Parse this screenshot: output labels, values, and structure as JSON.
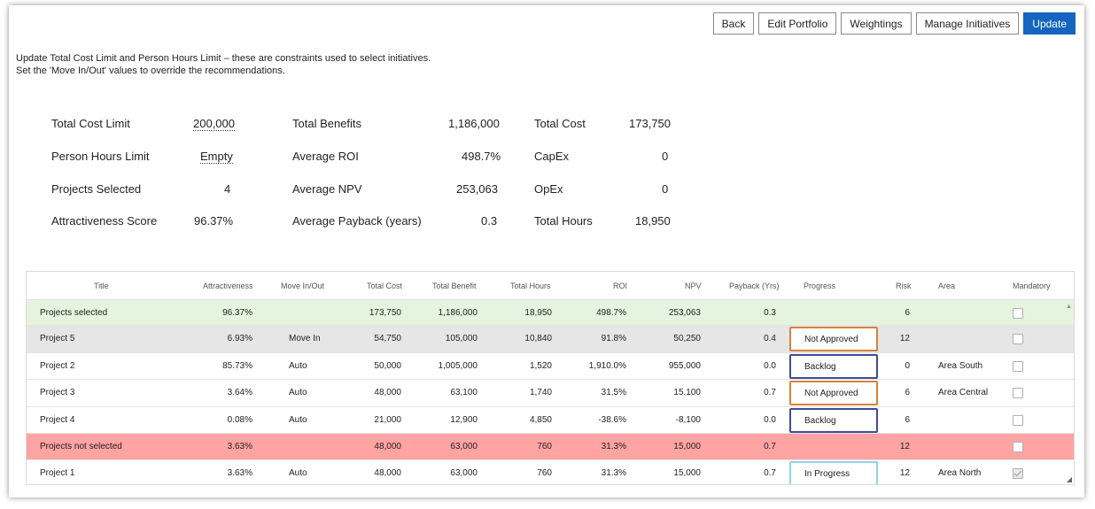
{
  "toolbar": {
    "back": "Back",
    "edit_portfolio": "Edit Portfolio",
    "weightings": "Weightings",
    "manage_initiatives": "Manage Initiatives",
    "update": "Update",
    "accent_color": "#1565c0"
  },
  "intro": {
    "line1": "Update Total Cost Limit and Person Hours Limit – these are constraints used to select initiatives.",
    "line2": "Set the 'Move In/Out' values to override the recommendations."
  },
  "summary": {
    "total_cost_limit_label": "Total Cost Limit",
    "total_cost_limit_value": "200,000",
    "person_hours_limit_label": "Person Hours Limit",
    "person_hours_limit_value": "Empty",
    "projects_selected_label": "Projects Selected",
    "projects_selected_value": "4",
    "attractiveness_score_label": "Attractiveness Score",
    "attractiveness_score_value": "96.37%",
    "total_benefits_label": "Total Benefits",
    "total_benefits_value": "1,186,000",
    "average_roi_label": "Average ROI",
    "average_roi_value": "498.7%",
    "average_npv_label": "Average NPV",
    "average_npv_value": "253,063",
    "average_payback_label": "Average Payback (years)",
    "average_payback_value": "0.3",
    "total_cost_label": "Total Cost",
    "total_cost_value": "173,750",
    "capex_label": "CapEx",
    "capex_value": "0",
    "opex_label": "OpEx",
    "opex_value": "0",
    "total_hours_label": "Total Hours",
    "total_hours_value": "18,950"
  },
  "grid": {
    "headers": {
      "title": "Title",
      "attractiveness": "Attractiveness",
      "move": "Move In/Out",
      "total_cost": "Total Cost",
      "total_benefit": "Total Benefit",
      "total_hours": "Total Hours",
      "roi": "ROI",
      "npv": "NPV",
      "payback": "Payback (Yrs)",
      "progress": "Progress",
      "risk": "Risk",
      "area": "Area",
      "mandatory": "Mandatory"
    },
    "rows": [
      {
        "title": "Projects selected",
        "attractiveness": "96.37%",
        "move": "",
        "total_cost": "173,750",
        "total_benefit": "1,186,000",
        "total_hours": "18,950",
        "roi": "498.7%",
        "npv": "253,063",
        "payback": "0.3",
        "progress": "",
        "risk": "6",
        "area": "",
        "mandatory": false
      },
      {
        "title": "Project 5",
        "attractiveness": "6.93%",
        "move": "Move In",
        "total_cost": "54,750",
        "total_benefit": "105,000",
        "total_hours": "10,840",
        "roi": "91.8%",
        "npv": "50,250",
        "payback": "0.4",
        "progress": "Not Approved",
        "risk": "12",
        "area": "",
        "mandatory": false
      },
      {
        "title": "Project 2",
        "attractiveness": "85.73%",
        "move": "Auto",
        "total_cost": "50,000",
        "total_benefit": "1,005,000",
        "total_hours": "1,520",
        "roi": "1,910.0%",
        "npv": "955,000",
        "payback": "0.0",
        "progress": "Backlog",
        "risk": "0",
        "area": "Area South",
        "mandatory": false
      },
      {
        "title": "Project 3",
        "attractiveness": "3.64%",
        "move": "Auto",
        "total_cost": "48,000",
        "total_benefit": "63,100",
        "total_hours": "1,740",
        "roi": "31.5%",
        "npv": "15,100",
        "payback": "0.7",
        "progress": "Not Approved",
        "risk": "6",
        "area": "Area Central",
        "mandatory": false
      },
      {
        "title": "Project 4",
        "attractiveness": "0.08%",
        "move": "Auto",
        "total_cost": "21,000",
        "total_benefit": "12,900",
        "total_hours": "4,850",
        "roi": "-38.6%",
        "npv": "-8,100",
        "payback": "0.0",
        "progress": "Backlog",
        "risk": "6",
        "area": "",
        "mandatory": false
      },
      {
        "title": "Projects not selected",
        "attractiveness": "3.63%",
        "move": "",
        "total_cost": "48,000",
        "total_benefit": "63,000",
        "total_hours": "760",
        "roi": "31.3%",
        "npv": "15,000",
        "payback": "0.7",
        "progress": "",
        "risk": "12",
        "area": "",
        "mandatory": false
      },
      {
        "title": "Project 1",
        "attractiveness": "3.63%",
        "move": "Auto",
        "total_cost": "48,000",
        "total_benefit": "63,000",
        "total_hours": "760",
        "roi": "31.3%",
        "npv": "15,000",
        "payback": "0.7",
        "progress": "In Progress",
        "risk": "12",
        "area": "Area North",
        "mandatory": true
      }
    ],
    "progress_colors": {
      "Not Approved": "#d9823b",
      "Backlog": "#3f4b9a",
      "In Progress": "#8fd3ec"
    },
    "row_colors": {
      "selected_summary": "#e5f4df",
      "highlight": "#e6e6e6",
      "not_selected_summary": "#ffa3a3"
    }
  }
}
